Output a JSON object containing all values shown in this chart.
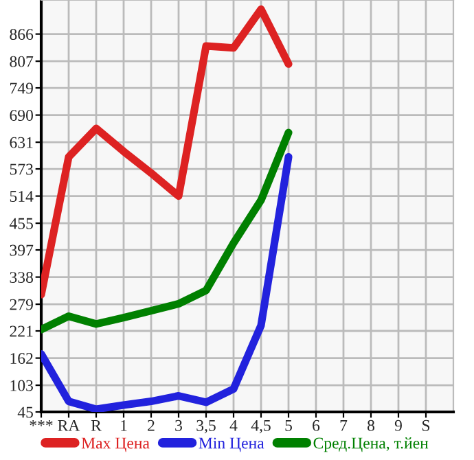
{
  "chart_data": {
    "type": "line",
    "categories": [
      "***",
      "RA",
      "R",
      "1",
      "2",
      "3",
      "3,5",
      "4",
      "4,5",
      "5",
      "6",
      "7",
      "8",
      "9",
      "S"
    ],
    "series": [
      {
        "name": "Max Цена",
        "color": "#dd2222",
        "values": [
          300,
          599,
          661,
          611,
          564,
          514,
          840,
          836,
          920,
          801,
          null,
          null,
          null,
          null,
          null
        ]
      },
      {
        "name": "Min Цена",
        "color": "#2222dd",
        "values": [
          171,
          68,
          51,
          60,
          68,
          80,
          66,
          95,
          233,
          599,
          null,
          null,
          null,
          null,
          null
        ]
      },
      {
        "name": "Сред.Цена, т.йен",
        "color": "#008000",
        "values": [
          224,
          253,
          236,
          250,
          265,
          280,
          309,
          412,
          505,
          652,
          null,
          null,
          null,
          null,
          null
        ]
      }
    ],
    "ylim": [
      45,
      940
    ],
    "yticks": [
      45,
      103,
      162,
      221,
      279,
      338,
      397,
      455,
      514,
      573,
      631,
      690,
      749,
      807,
      866
    ],
    "grid": true,
    "legend": "bottom",
    "marker": "none",
    "line_style": "solid"
  }
}
